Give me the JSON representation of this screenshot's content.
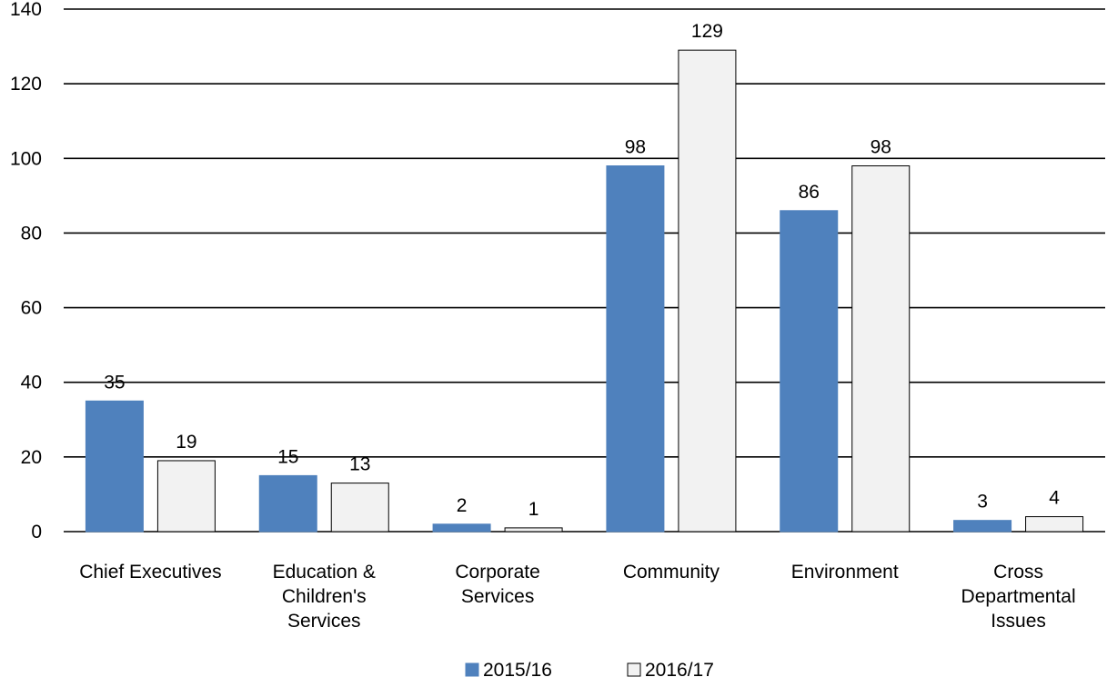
{
  "chart_data": {
    "type": "bar",
    "title": "",
    "xlabel": "",
    "ylabel": "",
    "ylim": [
      0,
      140
    ],
    "yticks": [
      0,
      20,
      40,
      60,
      80,
      100,
      120,
      140
    ],
    "grid": true,
    "legend_position": "bottom",
    "categories": [
      [
        "Chief Executives"
      ],
      [
        "Education &",
        "Children's",
        "Services"
      ],
      [
        "Corporate",
        "Services"
      ],
      [
        "Community"
      ],
      [
        "Environment"
      ],
      [
        "Cross",
        "Departmental",
        "Issues"
      ]
    ],
    "series": [
      {
        "name": "2015/16",
        "values": [
          35,
          15,
          2,
          98,
          86,
          3
        ],
        "color": "#4F81BD",
        "stroke": "#4F81BD"
      },
      {
        "name": "2016/17",
        "values": [
          19,
          13,
          1,
          129,
          98,
          4
        ],
        "color": "#F2F2F2",
        "stroke": "#000000"
      }
    ]
  }
}
